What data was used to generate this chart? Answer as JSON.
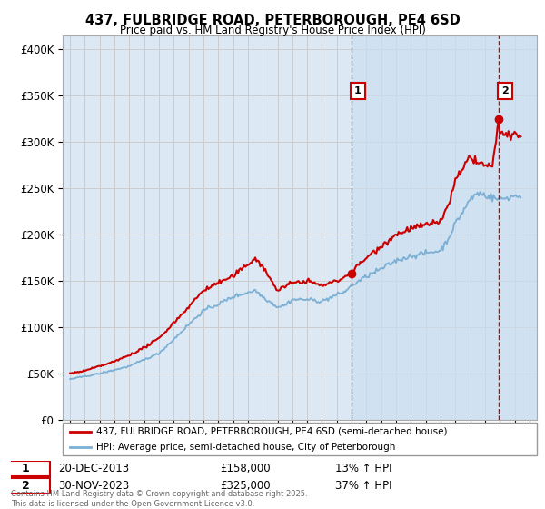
{
  "title": "437, FULBRIDGE ROAD, PETERBOROUGH, PE4 6SD",
  "subtitle": "Price paid vs. HM Land Registry's House Price Index (HPI)",
  "ylabel_ticks": [
    "£0",
    "£50K",
    "£100K",
    "£150K",
    "£200K",
    "£250K",
    "£300K",
    "£350K",
    "£400K"
  ],
  "ytick_values": [
    0,
    50000,
    100000,
    150000,
    200000,
    250000,
    300000,
    350000,
    400000
  ],
  "ylim": [
    0,
    415000
  ],
  "xlim_start": 1994.5,
  "xlim_end": 2026.5,
  "sale1_x": 2013.97,
  "sale1_y": 158000,
  "sale1_label": "1",
  "sale1_date": "20-DEC-2013",
  "sale1_price": "£158,000",
  "sale1_hpi": "13% ↑ HPI",
  "sale2_x": 2023.92,
  "sale2_y": 325000,
  "sale2_label": "2",
  "sale2_date": "30-NOV-2023",
  "sale2_price": "£325,000",
  "sale2_hpi": "37% ↑ HPI",
  "line1_label": "437, FULBRIDGE ROAD, PETERBOROUGH, PE4 6SD (semi-detached house)",
  "line2_label": "HPI: Average price, semi-detached house, City of Peterborough",
  "line1_color": "#cc0000",
  "line2_color": "#7bafd4",
  "footer": "Contains HM Land Registry data © Crown copyright and database right 2025.\nThis data is licensed under the Open Government Licence v3.0.",
  "background_color": "#ffffff",
  "grid_color": "#cccccc",
  "plot_bg_color": "#dce9f5",
  "shade_color": "#ccdff0",
  "annotation_box_color": "#cc0000"
}
